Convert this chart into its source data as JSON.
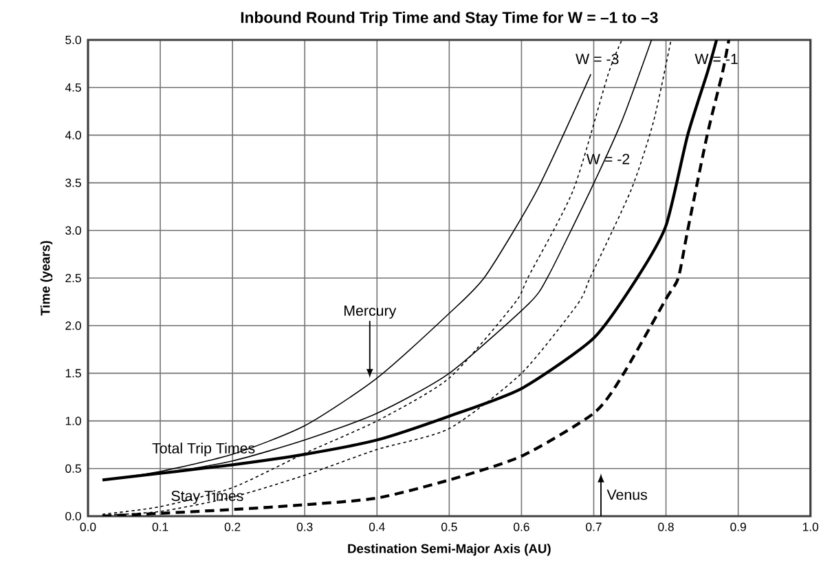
{
  "chart_data": {
    "type": "line",
    "title": "Inbound Round Trip Time and Stay Time for W = –1 to –3",
    "xlabel": "Destination Semi-Major Axis (AU)",
    "ylabel": "Time (years)",
    "xlim": [
      0,
      1
    ],
    "ylim": [
      0,
      5
    ],
    "xticks": [
      {
        "value": 0,
        "label": "0.0"
      },
      {
        "value": 0.1,
        "label": "0.1"
      },
      {
        "value": 0.2,
        "label": "0.2"
      },
      {
        "value": 0.3,
        "label": "0.3"
      },
      {
        "value": 0.4,
        "label": "0.4"
      },
      {
        "value": 0.5,
        "label": "0.5"
      },
      {
        "value": 0.6,
        "label": "0.6"
      },
      {
        "value": 0.7,
        "label": "0.7"
      },
      {
        "value": 0.8,
        "label": "0.8"
      },
      {
        "value": 0.9,
        "label": "0.9"
      },
      {
        "value": 1,
        "label": "1.0"
      }
    ],
    "yticks": [
      {
        "value": 0,
        "label": "0.0"
      },
      {
        "value": 0.5,
        "label": "0.5"
      },
      {
        "value": 1,
        "label": "1.0"
      },
      {
        "value": 1.5,
        "label": "1.5"
      },
      {
        "value": 2,
        "label": "2.0"
      },
      {
        "value": 2.5,
        "label": "2.5"
      },
      {
        "value": 3,
        "label": "3.0"
      },
      {
        "value": 3.5,
        "label": "3.5"
      },
      {
        "value": 4,
        "label": "4.0"
      },
      {
        "value": 4.5,
        "label": "4.5"
      },
      {
        "value": 5,
        "label": "5.0"
      }
    ],
    "grid": true,
    "marker": "none",
    "series": [
      {
        "color": "#000000",
        "line_style": "solid",
        "x": [
          0.02,
          0.1,
          0.2,
          0.3,
          0.4,
          0.5,
          0.6,
          0.7,
          0.76,
          0.8,
          0.83,
          0.857,
          0.87
        ],
        "values": [
          0.38,
          0.45,
          0.54,
          0.65,
          0.8,
          1.05,
          1.34,
          1.87,
          2.5,
          3.05,
          4.0,
          4.65,
          5.0
        ]
      },
      {
        "color": "#000000",
        "line_style": "dashed",
        "x": [
          0.02,
          0.1,
          0.2,
          0.3,
          0.4,
          0.5,
          0.6,
          0.7,
          0.74,
          0.8,
          0.817,
          0.83,
          0.857,
          0.878,
          0.887
        ],
        "values": [
          0.0,
          0.03,
          0.07,
          0.12,
          0.19,
          0.38,
          0.63,
          1.08,
          1.48,
          2.28,
          2.5,
          3.0,
          4.0,
          4.65,
          5.0
        ]
      },
      {
        "color": "#000000",
        "line_style": "solid",
        "x": [
          0.02,
          0.1,
          0.2,
          0.3,
          0.4,
          0.5,
          0.61,
          0.637,
          0.696,
          0.739,
          0.78
        ],
        "values": [
          0.38,
          0.45,
          0.58,
          0.8,
          1.08,
          1.5,
          2.23,
          2.52,
          3.43,
          4.15,
          5.0
        ]
      },
      {
        "color": "#000000",
        "line_style": "dotted",
        "x": [
          0.02,
          0.1,
          0.2,
          0.3,
          0.4,
          0.5,
          0.6,
          0.678,
          0.696,
          0.752,
          0.783,
          0.807
        ],
        "values": [
          0.01,
          0.05,
          0.2,
          0.43,
          0.7,
          0.92,
          1.5,
          2.23,
          2.52,
          3.43,
          4.15,
          5.0
        ]
      },
      {
        "color": "#000000",
        "line_style": "solid",
        "x": [
          0.02,
          0.1,
          0.2,
          0.3,
          0.4,
          0.5,
          0.55,
          0.622,
          0.696
        ],
        "values": [
          0.38,
          0.47,
          0.65,
          0.95,
          1.45,
          2.13,
          2.52,
          3.43,
          4.64
        ]
      },
      {
        "color": "#000000",
        "line_style": "dotted",
        "x": [
          0.02,
          0.1,
          0.2,
          0.3,
          0.4,
          0.5,
          0.59,
          0.61,
          0.672,
          0.72,
          0.739
        ],
        "values": [
          0.02,
          0.1,
          0.3,
          0.66,
          1.0,
          1.45,
          2.23,
          2.52,
          3.43,
          4.64,
          5.0
        ]
      }
    ],
    "annotations": [
      "W = -3",
      "W = -2",
      "W = -1",
      {
        "text": "Mercury",
        "x": 0.39,
        "y": 1.45
      },
      "Venus",
      "Total Trip Times",
      "Stay Times"
    ]
  }
}
